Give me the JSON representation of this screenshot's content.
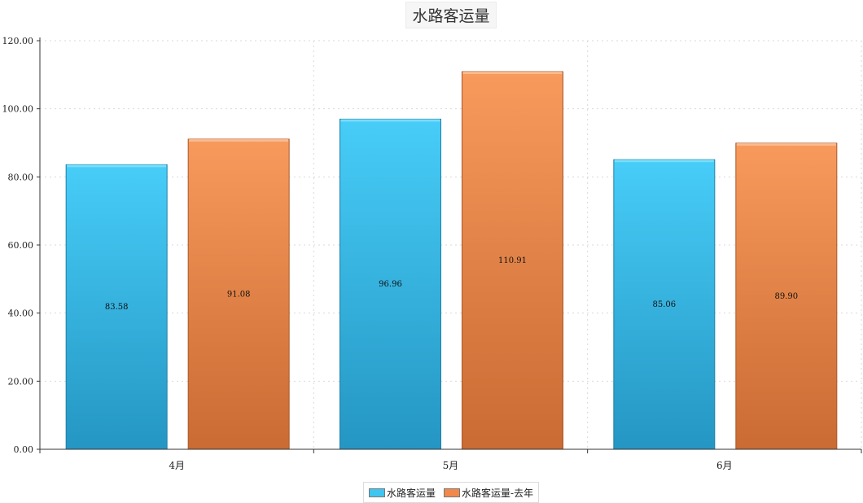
{
  "chart_data": {
    "type": "bar",
    "title": "水路客运量",
    "categories": [
      "4月",
      "5月",
      "6月"
    ],
    "series": [
      {
        "name": "水路客运量",
        "values": [
          83.58,
          96.96,
          85.06
        ],
        "color": "#3ec5f0"
      },
      {
        "name": "水路客运量-去年",
        "values": [
          91.08,
          110.91,
          89.9
        ],
        "color": "#f0894a"
      }
    ],
    "data_labels": [
      [
        "83.58",
        "96.96",
        "85.06"
      ],
      [
        "91.08",
        "110.91",
        "89.90"
      ]
    ],
    "ylim": [
      0,
      120
    ],
    "yticks": [
      "0.00",
      "20.00",
      "40.00",
      "60.00",
      "80.00",
      "100.00",
      "120.00"
    ],
    "xlabel": "",
    "ylabel": "",
    "grid": true,
    "legend_position": "bottom-center"
  }
}
